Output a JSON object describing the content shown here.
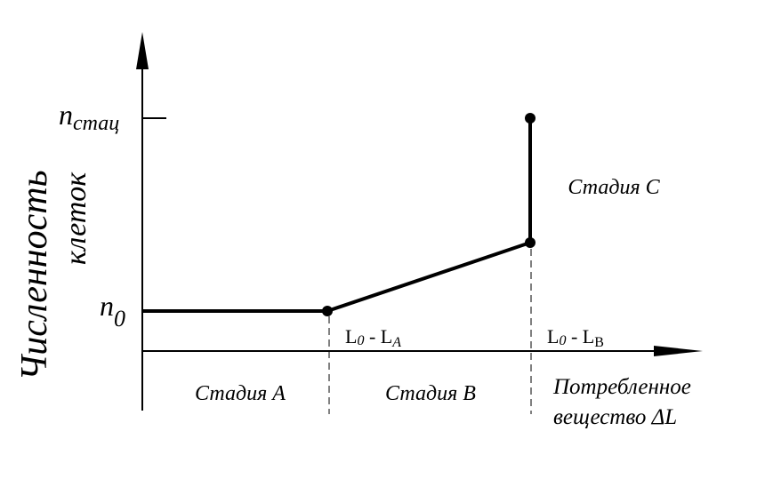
{
  "y_axis": {
    "line1": "Численность",
    "line2": "клеток"
  },
  "x_axis": {
    "line1": "Потребленное",
    "line2": "вещество ΔL"
  },
  "levels": {
    "stationary": {
      "symbol": "n",
      "subscript": "стац"
    },
    "initial": {
      "symbol": "n",
      "subscript": "0"
    }
  },
  "boundaries": [
    {
      "a": "L",
      "a_sub": "0",
      "b": " - L",
      "b_sub": "A"
    },
    {
      "a": "L",
      "a_sub": "0",
      "b": " - L",
      "b_sub": "B"
    }
  ],
  "stages": [
    "Стадия A",
    "Стадия B",
    "Стадия C"
  ]
}
